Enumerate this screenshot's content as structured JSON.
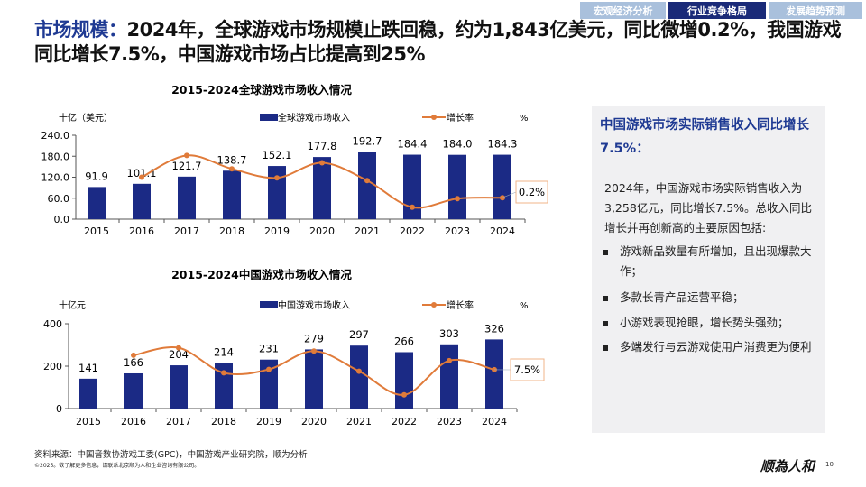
{
  "nav_tabs": [
    {
      "label": "宏观经济分析",
      "active": false
    },
    {
      "label": "行业竞争格局",
      "active": true
    },
    {
      "label": "发展趋势预测",
      "active": false
    }
  ],
  "colors": {
    "tab_inactive": "#a9c0dc",
    "tab_active": "#1a2a78",
    "bar": "#1b2a85",
    "line": "#e07b3a",
    "accent": "#1f3a93",
    "panel_bg": "#f0f0f2"
  },
  "headline": {
    "highlight": "市场规模：",
    "text": "2024年，全球游戏市场规模止跌回稳，约为1,843亿美元，同比微增0.2%，我国游戏同比增长7.5%，中国游戏市场占比提高到25%"
  },
  "chart_data": [
    {
      "type": "bar",
      "title": "2015-2024全球游戏市场收入情况",
      "ylabel": "十亿（美元）",
      "y2label": "%",
      "categories": [
        "2015",
        "2016",
        "2017",
        "2018",
        "2019",
        "2020",
        "2021",
        "2022",
        "2023",
        "2024"
      ],
      "ylim": [
        0,
        240
      ],
      "yticks": [
        "0.0",
        "60.0",
        "120.0",
        "180.0",
        "240.0"
      ],
      "y2lim": [
        -10,
        30
      ],
      "legend_position": "top",
      "series": [
        {
          "name": "全球游戏市场收入",
          "type": "bar",
          "values": [
            91.9,
            101.1,
            121.7,
            138.7,
            152.1,
            177.8,
            192.7,
            184.4,
            184.0,
            184.3
          ],
          "labels": [
            "91.9",
            "101.1",
            "121.7",
            "138.7",
            "152.1",
            "177.8",
            "192.7",
            "184.4",
            "184.0",
            "184.3"
          ]
        },
        {
          "name": "增长率",
          "type": "line",
          "axis": "right",
          "values": [
            null,
            10.0,
            20.4,
            14.0,
            9.7,
            16.9,
            8.4,
            -4.3,
            -0.2,
            0.2
          ]
        }
      ],
      "annotation": "0.2%"
    },
    {
      "type": "bar",
      "title": "2015-2024中国游戏市场收入情况",
      "ylabel": "十亿元",
      "y2label": "%",
      "categories": [
        "2015",
        "2016",
        "2017",
        "2018",
        "2019",
        "2020",
        "2021",
        "2022",
        "2023",
        "2024"
      ],
      "ylim": [
        0,
        400
      ],
      "yticks": [
        "0",
        "200",
        "400"
      ],
      "y2lim": [
        -20,
        40
      ],
      "legend_position": "top",
      "series": [
        {
          "name": "中国游戏市场收入",
          "type": "bar",
          "values": [
            141,
            166,
            204,
            214,
            231,
            279,
            297,
            266,
            303,
            326
          ],
          "labels": [
            "141",
            "166",
            "204",
            "214",
            "231",
            "279",
            "297",
            "266",
            "303",
            "326"
          ]
        },
        {
          "name": "增长率",
          "type": "line",
          "axis": "right",
          "values": [
            null,
            17.7,
            23.0,
            5.3,
            7.7,
            20.7,
            6.4,
            -10.3,
            13.9,
            7.5
          ]
        }
      ],
      "annotation": "7.5%"
    }
  ],
  "panel": {
    "heading": "中国游戏市场实际销售收入同比增长7.5%：",
    "body": "2024年，中国游戏市场实际销售收入为3,258亿元，同比增长7.5%。总收入同比增长并再创新高的主要原因包括:",
    "bullets": [
      "游戏新品数量有所增加，且出现爆款大作；",
      "多款长青产品运营平稳；",
      "小游戏表现抢眼，增长势头强劲；",
      "多端发行与云游戏使用户消费更为便利"
    ]
  },
  "footer": {
    "source": "资料来源：中国音数协游戏工委(GPC)，中国游戏产业研究院，顺为分析",
    "copyright": "©2025。欲了解更多信息，请联系北京顺为人和企业咨询有限公司。",
    "logo": "顺為人和",
    "page": "10"
  }
}
